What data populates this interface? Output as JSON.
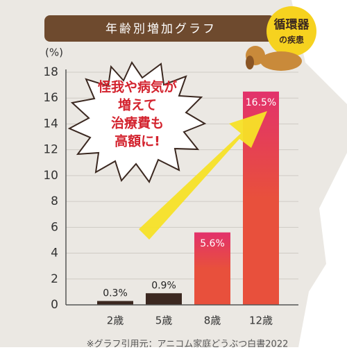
{
  "chart_data": {
    "type": "bar",
    "title": "年齢別増加グラフ",
    "y_label": "(%)",
    "categories": [
      "2歳",
      "5歳",
      "8歳",
      "12歳"
    ],
    "values": [
      0.3,
      0.9,
      5.6,
      16.5
    ],
    "value_labels": [
      "0.3%",
      "0.9%",
      "5.6%",
      "16.5%"
    ],
    "colors": [
      "#3b2820",
      "#3b2820",
      "#e8503c",
      "#e8503c"
    ],
    "ylim": [
      0,
      18
    ],
    "yticks": [
      0,
      2,
      4,
      6,
      8,
      10,
      12,
      14,
      16,
      18
    ],
    "grid": true,
    "badge": [
      "循環器",
      "の疾患"
    ],
    "callout": [
      "怪我や病気が",
      "増えて",
      "治療費も",
      "高額に!"
    ],
    "footnote": "※グラフ引用元：アニコム家庭どうぶつ白書2022"
  }
}
